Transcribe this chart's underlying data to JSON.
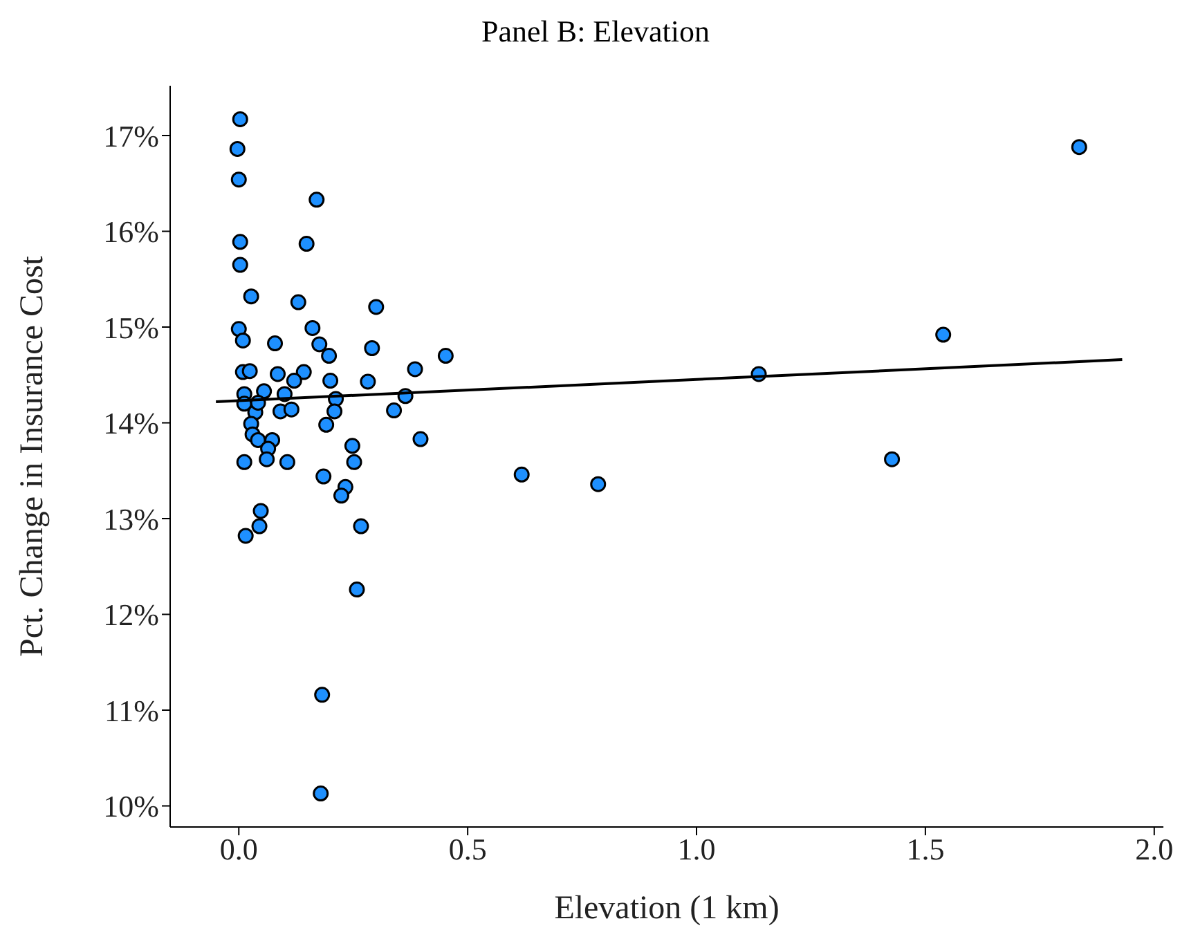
{
  "chart_data": {
    "type": "scatter",
    "title": "Panel B: Elevation",
    "xlabel": "Elevation (1 km)",
    "ylabel": "Pct. Change in Insurance Cost",
    "xlim": [
      -0.15,
      2.02
    ],
    "ylim": [
      9.78,
      17.52
    ],
    "xticks": [
      {
        "value": 0,
        "label": "0.0"
      },
      {
        "value": 0.5,
        "label": "0.5"
      },
      {
        "value": 1,
        "label": "1.0"
      },
      {
        "value": 1.5,
        "label": "1.5"
      },
      {
        "value": 2,
        "label": "2.0"
      }
    ],
    "yticks": [
      {
        "value": 10,
        "label": "10%"
      },
      {
        "value": 11,
        "label": "11%"
      },
      {
        "value": 12,
        "label": "12%"
      },
      {
        "value": 13,
        "label": "13%"
      },
      {
        "value": 14,
        "label": "14%"
      },
      {
        "value": 15,
        "label": "15%"
      },
      {
        "value": 16,
        "label": "16%"
      },
      {
        "value": 17,
        "label": "17%"
      }
    ],
    "grid": false,
    "legend": false,
    "series": [
      {
        "type": "scatter",
        "color": "#1e90ff",
        "marker": "circle",
        "x": [
          0.003,
          -0.003,
          0,
          0.17,
          0.003,
          0.148,
          0.003,
          0.027,
          0.13,
          0.3,
          0,
          0.161,
          0.009,
          0.079,
          0.176,
          0.291,
          0.197,
          0.452,
          0.009,
          0.024,
          0.085,
          0.142,
          0.385,
          0.121,
          0.2,
          0.282,
          1.136,
          0.364,
          0.012,
          0.055,
          0.1,
          0.212,
          0.012,
          0.036,
          0.042,
          0.091,
          0.115,
          0.209,
          0.339,
          0.027,
          0.03,
          0.191,
          0.042,
          0.073,
          0.064,
          0.061,
          0.106,
          0.012,
          0.248,
          0.252,
          0.397,
          0.185,
          0.233,
          0.224,
          0.048,
          0.045,
          0.015,
          0.267,
          0.258,
          0.182,
          0.179,
          0.618,
          0.785,
          1.427,
          1.539,
          1.836
        ],
        "values": [
          17.17,
          16.86,
          16.54,
          16.33,
          15.89,
          15.87,
          15.65,
          15.32,
          15.26,
          15.21,
          14.98,
          14.99,
          14.86,
          14.83,
          14.82,
          14.78,
          14.7,
          14.7,
          14.53,
          14.54,
          14.51,
          14.53,
          14.56,
          14.44,
          14.44,
          14.43,
          14.51,
          14.28,
          14.3,
          14.33,
          14.3,
          14.25,
          14.2,
          14.11,
          14.21,
          14.12,
          14.14,
          14.12,
          14.13,
          13.99,
          13.88,
          13.98,
          13.82,
          13.82,
          13.73,
          13.62,
          13.59,
          13.59,
          13.76,
          13.59,
          13.83,
          13.44,
          13.33,
          13.24,
          13.08,
          12.92,
          12.82,
          12.92,
          12.26,
          11.16,
          10.13,
          13.46,
          13.36,
          13.62,
          14.92,
          16.88
        ]
      },
      {
        "type": "line",
        "color": "#000000",
        "marker": "none",
        "x": [
          -0.05,
          1.93
        ],
        "values": [
          14.22,
          14.66
        ]
      }
    ]
  }
}
